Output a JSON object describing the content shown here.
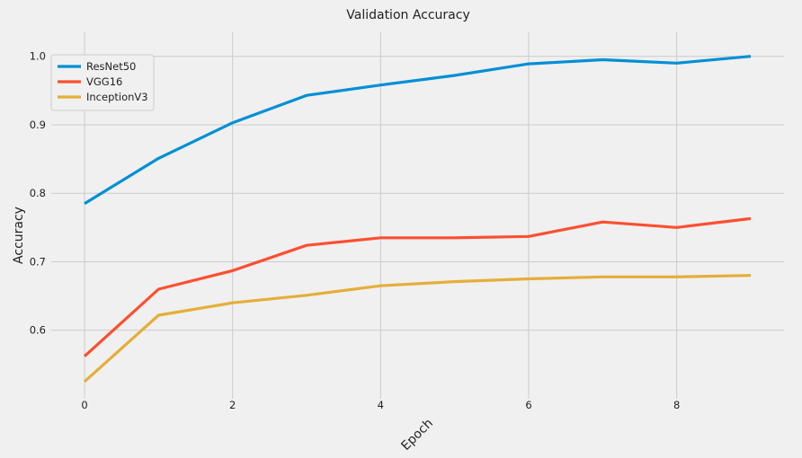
{
  "chart_data": {
    "type": "line",
    "title": "Validation Accuracy",
    "xlabel": "Epoch",
    "ylabel": "Accuracy",
    "x": [
      0,
      1,
      2,
      3,
      4,
      5,
      6,
      7,
      8,
      9
    ],
    "xlim": [
      -0.45,
      9.45
    ],
    "ylim": [
      0.5,
      1.035
    ],
    "x_ticks": [
      0,
      2,
      4,
      6,
      8
    ],
    "y_ticks": [
      0.6,
      0.7,
      0.8,
      0.9,
      1.0
    ],
    "x_tick_labels": [
      "0",
      "2",
      "4",
      "6",
      "8"
    ],
    "y_tick_labels": [
      "0.6",
      "0.7",
      "0.8",
      "0.9",
      "1.0"
    ],
    "grid": true,
    "legend_position": "top-left",
    "series": [
      {
        "name": "ResNet50",
        "color": "#008fd5",
        "values": [
          0.785,
          0.851,
          0.903,
          0.943,
          0.958,
          0.972,
          0.989,
          0.995,
          0.99,
          1.0
        ]
      },
      {
        "name": "VGG16",
        "color": "#fc4f30",
        "values": [
          0.562,
          0.66,
          0.687,
          0.724,
          0.735,
          0.735,
          0.737,
          0.758,
          0.75,
          0.763
        ]
      },
      {
        "name": "InceptionV3",
        "color": "#e5ae38",
        "values": [
          0.525,
          0.622,
          0.64,
          0.651,
          0.665,
          0.671,
          0.675,
          0.678,
          0.678,
          0.68
        ]
      }
    ]
  }
}
